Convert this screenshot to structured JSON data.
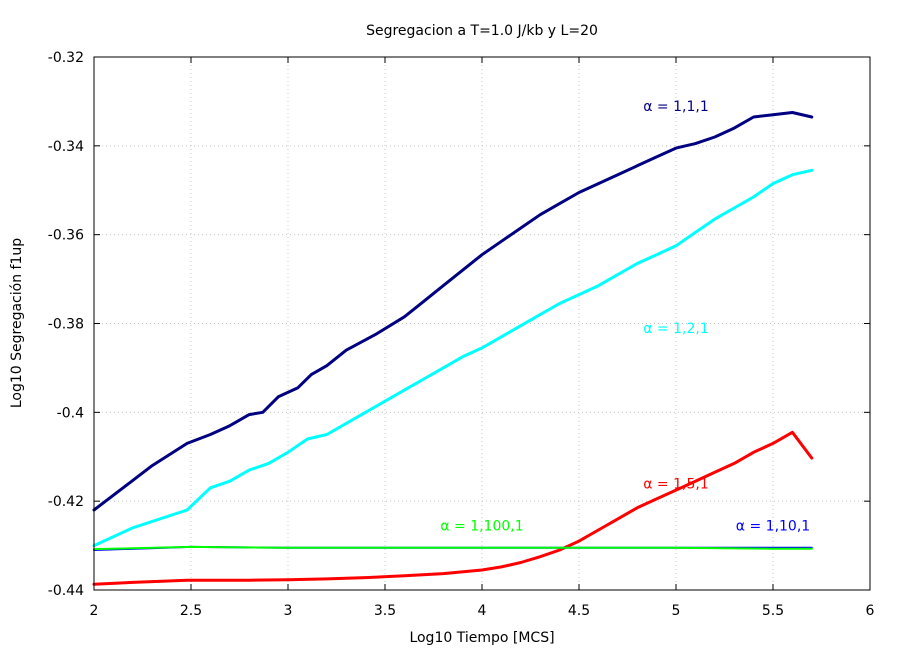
{
  "chart_data": {
    "type": "line",
    "title": "Segregacion a T=1.0 J/kb y L=20",
    "xlabel": "Log10 Tiempo [MCS]",
    "ylabel": "Log10 Segregación f1up",
    "xlim": [
      2,
      6
    ],
    "ylim": [
      -0.44,
      -0.32
    ],
    "xticks": [
      2,
      2.5,
      3,
      3.5,
      4,
      4.5,
      5,
      5.5,
      6
    ],
    "xtick_labels": [
      "2",
      "2.5",
      "3",
      "3.5",
      "4",
      "4.5",
      "5",
      "5.5",
      "6"
    ],
    "yticks": [
      -0.44,
      -0.42,
      -0.4,
      -0.38,
      -0.36,
      -0.34,
      -0.32
    ],
    "ytick_labels": [
      "-0.44",
      "-0.42",
      "-0.4",
      "-0.38",
      "-0.36",
      "-0.34",
      "-0.32"
    ],
    "grid": true,
    "legend": "none",
    "series": [
      {
        "name": "α = 1,1,1",
        "color": "#000080",
        "label_at": [
          5.0,
          -0.331
        ],
        "x": [
          2.0,
          2.15,
          2.3,
          2.48,
          2.6,
          2.7,
          2.8,
          2.87,
          2.95,
          3.05,
          3.12,
          3.2,
          3.3,
          3.45,
          3.6,
          3.7,
          3.8,
          3.9,
          4.0,
          4.1,
          4.2,
          4.3,
          4.4,
          4.5,
          4.6,
          4.7,
          4.8,
          4.9,
          5.0,
          5.1,
          5.2,
          5.3,
          5.4,
          5.5,
          5.6,
          5.7
        ],
        "y": [
          -0.422,
          -0.417,
          -0.412,
          -0.407,
          -0.405,
          -0.403,
          -0.4005,
          -0.4,
          -0.3965,
          -0.3945,
          -0.3915,
          -0.3895,
          -0.386,
          -0.3825,
          -0.3785,
          -0.375,
          -0.3715,
          -0.368,
          -0.3645,
          -0.3615,
          -0.3585,
          -0.3555,
          -0.353,
          -0.3505,
          -0.3485,
          -0.3465,
          -0.3445,
          -0.3425,
          -0.3405,
          -0.3395,
          -0.338,
          -0.336,
          -0.3335,
          -0.333,
          -0.3325,
          -0.3335
        ]
      },
      {
        "name": "α = 1,2,1",
        "color": "#00ffff",
        "label_at": [
          5.0,
          -0.381
        ],
        "x": [
          2.0,
          2.2,
          2.48,
          2.6,
          2.7,
          2.8,
          2.9,
          3.0,
          3.1,
          3.2,
          3.3,
          3.4,
          3.5,
          3.6,
          3.7,
          3.8,
          3.9,
          4.0,
          4.1,
          4.2,
          4.3,
          4.4,
          4.5,
          4.6,
          4.7,
          4.8,
          4.9,
          5.0,
          5.1,
          5.2,
          5.3,
          5.4,
          5.5,
          5.6,
          5.7
        ],
        "y": [
          -0.43,
          -0.426,
          -0.422,
          -0.417,
          -0.4155,
          -0.413,
          -0.4115,
          -0.409,
          -0.406,
          -0.405,
          -0.4025,
          -0.4,
          -0.3975,
          -0.395,
          -0.3925,
          -0.39,
          -0.3875,
          -0.3855,
          -0.383,
          -0.3805,
          -0.378,
          -0.3755,
          -0.3735,
          -0.3715,
          -0.369,
          -0.3665,
          -0.3645,
          -0.3625,
          -0.3595,
          -0.3565,
          -0.354,
          -0.3515,
          -0.3485,
          -0.3465,
          -0.3455
        ]
      },
      {
        "name": "α = 1,5,1",
        "color": "#ff0000",
        "label_at": [
          5.0,
          -0.416
        ],
        "x": [
          2.0,
          2.2,
          2.48,
          2.6,
          2.8,
          3.0,
          3.2,
          3.4,
          3.6,
          3.8,
          4.0,
          4.1,
          4.2,
          4.3,
          4.4,
          4.5,
          4.6,
          4.7,
          4.8,
          4.9,
          5.0,
          5.1,
          5.2,
          5.3,
          5.4,
          5.5,
          5.6,
          5.7
        ],
        "y": [
          -0.4387,
          -0.4383,
          -0.4378,
          -0.4378,
          -0.4378,
          -0.4377,
          -0.4375,
          -0.4372,
          -0.4368,
          -0.4363,
          -0.4355,
          -0.4348,
          -0.4338,
          -0.4325,
          -0.431,
          -0.429,
          -0.4265,
          -0.424,
          -0.4215,
          -0.4195,
          -0.4175,
          -0.4155,
          -0.4135,
          -0.4115,
          -0.409,
          -0.407,
          -0.4045,
          -0.4103
        ]
      },
      {
        "name": "α = 1,10,1",
        "color": "#0000ff",
        "label_at": [
          5.5,
          -0.4255
        ],
        "x": [
          2.0,
          2.5,
          3.0,
          3.5,
          4.0,
          4.5,
          5.0,
          5.5,
          5.7
        ],
        "y": [
          -0.431,
          -0.4303,
          -0.4305,
          -0.4305,
          -0.4305,
          -0.4305,
          -0.4305,
          -0.4305,
          -0.4305
        ]
      },
      {
        "name": "α = 1,100,1",
        "color": "#00ff00",
        "label_at": [
          4.0,
          -0.4255
        ],
        "x": [
          2.0,
          2.5,
          3.0,
          3.5,
          4.0,
          4.5,
          5.0,
          5.5,
          5.7
        ],
        "y": [
          -0.4308,
          -0.4303,
          -0.4305,
          -0.4305,
          -0.4305,
          -0.4305,
          -0.4305,
          -0.4307,
          -0.4307
        ]
      }
    ]
  }
}
